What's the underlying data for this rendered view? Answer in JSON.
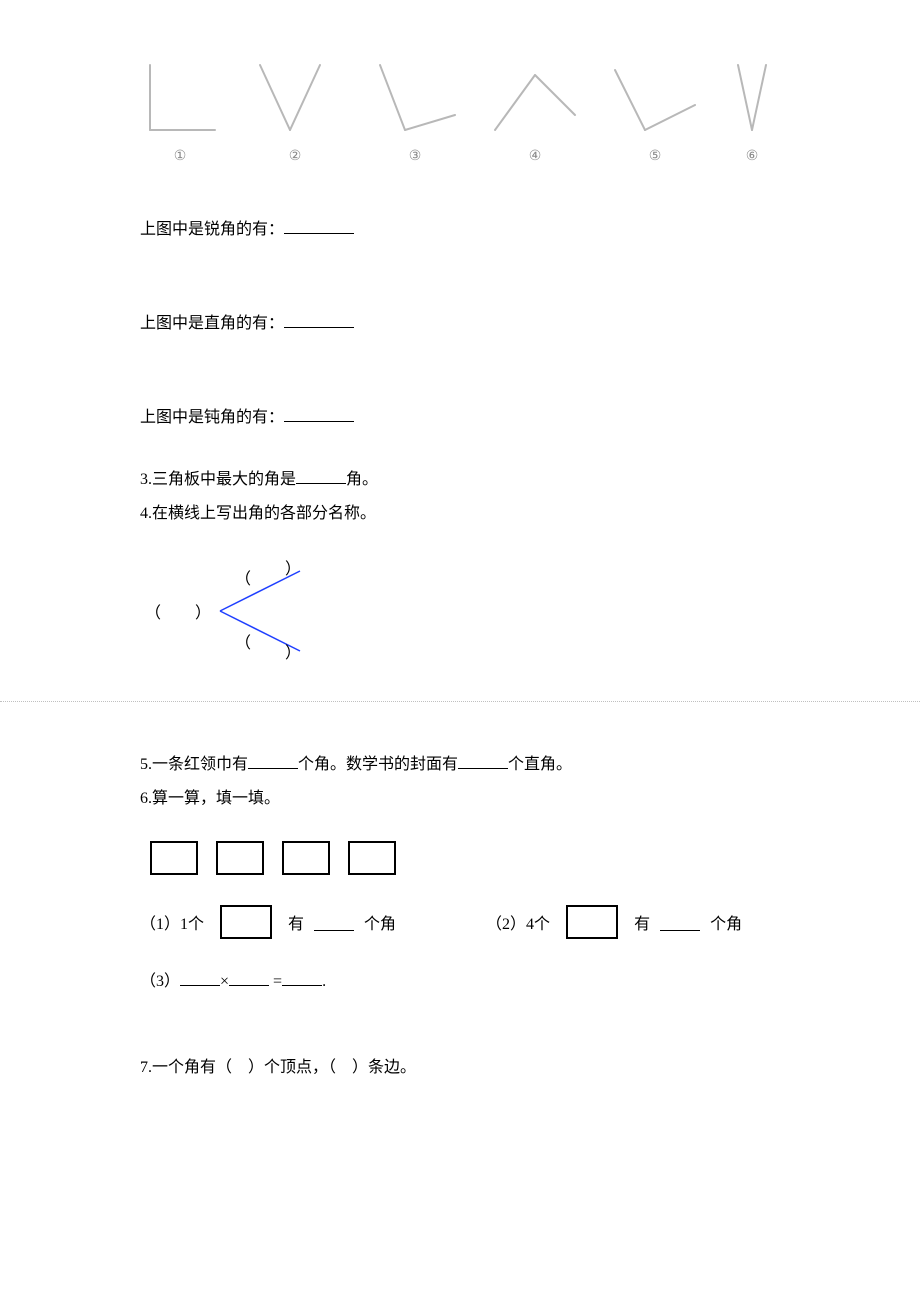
{
  "angles_diagram": {
    "stroke_color": "#b8b8b8",
    "stroke_width": 2,
    "label_color": "#8a8a8a",
    "items": [
      {
        "label": "①",
        "lines": [
          [
            [
              10,
              5
            ],
            [
              10,
              70
            ]
          ],
          [
            [
              10,
              70
            ],
            [
              75,
              70
            ]
          ]
        ]
      },
      {
        "label": "②",
        "lines": [
          [
            [
              10,
              5
            ],
            [
              40,
              70
            ]
          ],
          [
            [
              40,
              70
            ],
            [
              70,
              5
            ]
          ]
        ]
      },
      {
        "label": "③",
        "lines": [
          [
            [
              10,
              5
            ],
            [
              35,
              70
            ]
          ],
          [
            [
              35,
              70
            ],
            [
              85,
              55
            ]
          ]
        ]
      },
      {
        "label": "④",
        "lines": [
          [
            [
              5,
              70
            ],
            [
              45,
              15
            ]
          ],
          [
            [
              45,
              15
            ],
            [
              85,
              55
            ]
          ]
        ]
      },
      {
        "label": "⑤",
        "lines": [
          [
            [
              5,
              10
            ],
            [
              35,
              70
            ]
          ],
          [
            [
              35,
              70
            ],
            [
              85,
              45
            ]
          ]
        ]
      },
      {
        "label": "⑥",
        "lines": [
          [
            [
              8,
              5
            ],
            [
              22,
              70
            ]
          ],
          [
            [
              22,
              70
            ],
            [
              36,
              5
            ]
          ]
        ]
      }
    ]
  },
  "q_blank_lines": {
    "acute": "上图中是锐角的有：",
    "right": "上图中是直角的有：",
    "obtuse": "上图中是钝角的有："
  },
  "q3": {
    "prefix": "3.三角板中最大的角是",
    "suffix": "角。"
  },
  "q4": {
    "text": "4.在横线上写出角的各部分名称。",
    "diagram": {
      "vertex_open": "（",
      "vertex_close": "）",
      "edge_open": "（",
      "edge_close": "）",
      "line_color": "#2040ff",
      "line_width": 1.5
    }
  },
  "q5": {
    "prefix": "5.一条红领巾有",
    "mid": "个角。数学书的封面有",
    "suffix": "个直角。"
  },
  "q6": {
    "title": "6.算一算，填一填。",
    "sub1_prefix": "（1）1个",
    "sub1_mid": "有",
    "sub1_suffix": "个角",
    "sub2_prefix": "（2）4个",
    "sub2_mid": "有",
    "sub2_suffix": "个角",
    "sub3_prefix": "（3）",
    "sub3_mult": "×",
    "sub3_eq": "=",
    "sub3_end": "."
  },
  "q7": {
    "prefix": "7.一个角有（",
    "mid": "）个顶点，（",
    "suffix": "）条边。"
  }
}
